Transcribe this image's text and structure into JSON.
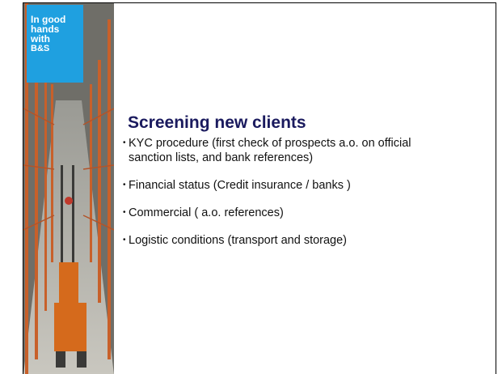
{
  "badge": {
    "lines": [
      "In good",
      "hands",
      "with",
      "B&S"
    ]
  },
  "title": "Screening new clients",
  "bullets": [
    "KYC procedure (first check of prospects a.o. on official sanction lists, and bank references)",
    "Financial status (Credit insurance / banks )",
    "Commercial  ( a.o. references)",
    "Logistic conditions (transport and storage)"
  ]
}
